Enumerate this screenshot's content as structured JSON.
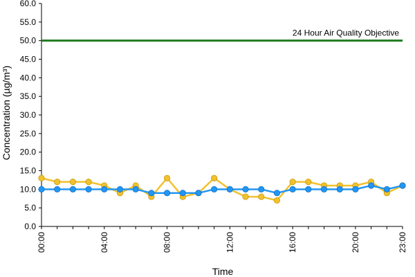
{
  "chart_data": {
    "type": "line",
    "title": "",
    "xlabel": "Time",
    "ylabel": "Concentration (µg/m³)",
    "ylim": [
      0,
      60
    ],
    "y_ticks": [
      "0.0",
      "5.0",
      "10.0",
      "15.0",
      "20.0",
      "25.0",
      "30.0",
      "35.0",
      "40.0",
      "45.0",
      "50.0",
      "55.0",
      "60.0"
    ],
    "x_hours": [
      0,
      1,
      2,
      3,
      4,
      5,
      6,
      7,
      8,
      9,
      10,
      11,
      12,
      13,
      14,
      15,
      16,
      17,
      18,
      19,
      20,
      21,
      22,
      23
    ],
    "x_tick_labels": [
      {
        "hour": 0,
        "label": "00:00"
      },
      {
        "hour": 4,
        "label": "04:00"
      },
      {
        "hour": 8,
        "label": "08:00"
      },
      {
        "hour": 12,
        "label": "12:00"
      },
      {
        "hour": 16,
        "label": "16:00"
      },
      {
        "hour": 20,
        "label": "20:00"
      },
      {
        "hour": 23,
        "label": "23:00"
      }
    ],
    "grid": false,
    "legend": "none",
    "series": [
      {
        "color": "#f2c12e",
        "values": [
          13,
          12,
          12,
          12,
          11,
          9,
          11,
          8,
          13,
          8,
          9,
          13,
          10,
          8,
          8,
          7,
          12,
          12,
          11,
          11,
          11,
          12,
          9,
          11
        ]
      },
      {
        "color": "#2196f3",
        "values": [
          10,
          10,
          10,
          10,
          10,
          10,
          10,
          9,
          9,
          9,
          9,
          10,
          10,
          10,
          10,
          9,
          10,
          10,
          10,
          10,
          10,
          11,
          10,
          11
        ]
      }
    ],
    "objective": {
      "label": "24 Hour Air Quality Objective",
      "value": 50,
      "color": "#1e7a1e"
    }
  }
}
